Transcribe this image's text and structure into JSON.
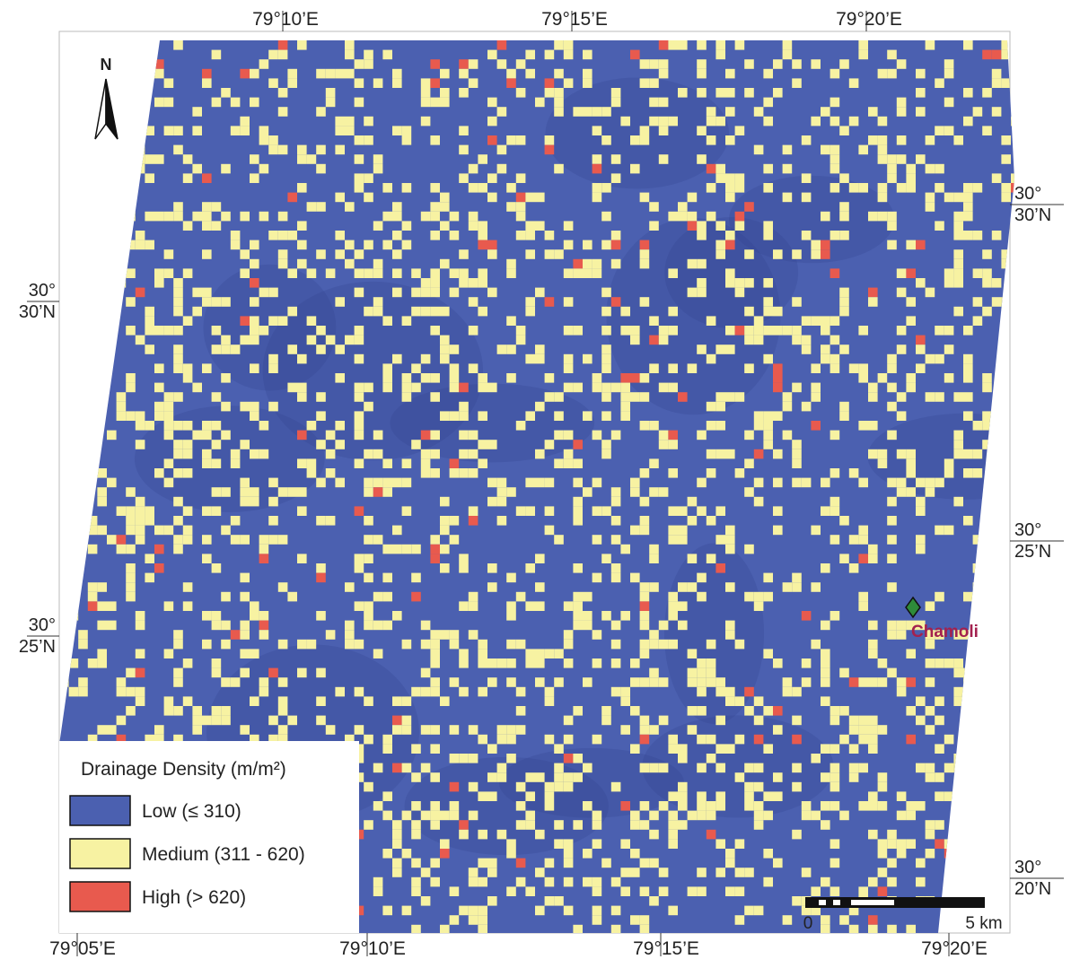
{
  "north": "N",
  "top_labels": [
    "79°10’E",
    "79°15’E",
    "79°20’E"
  ],
  "bottom_labels": [
    "79°05’E",
    "79°10’E",
    "79°15’E",
    "79°20’E"
  ],
  "left_labels": [
    [
      "30°",
      "30’N"
    ],
    [
      "30°",
      "25’N"
    ]
  ],
  "right_labels": [
    [
      "30°",
      "30’N"
    ],
    [
      "30°",
      "25’N"
    ],
    [
      "30°",
      "20’N"
    ]
  ],
  "place": "Chamoli",
  "legend": {
    "title": "Drainage Density (m/m²)",
    "items": [
      {
        "label": "Low (≤ 310)",
        "color": "#4b60b0"
      },
      {
        "label": "Medium (311 - 620)",
        "color": "#f7f2a2"
      },
      {
        "label": "High (> 620)",
        "color": "#e85a4e"
      }
    ]
  },
  "scale": {
    "start": "0",
    "end": "5 km"
  }
}
